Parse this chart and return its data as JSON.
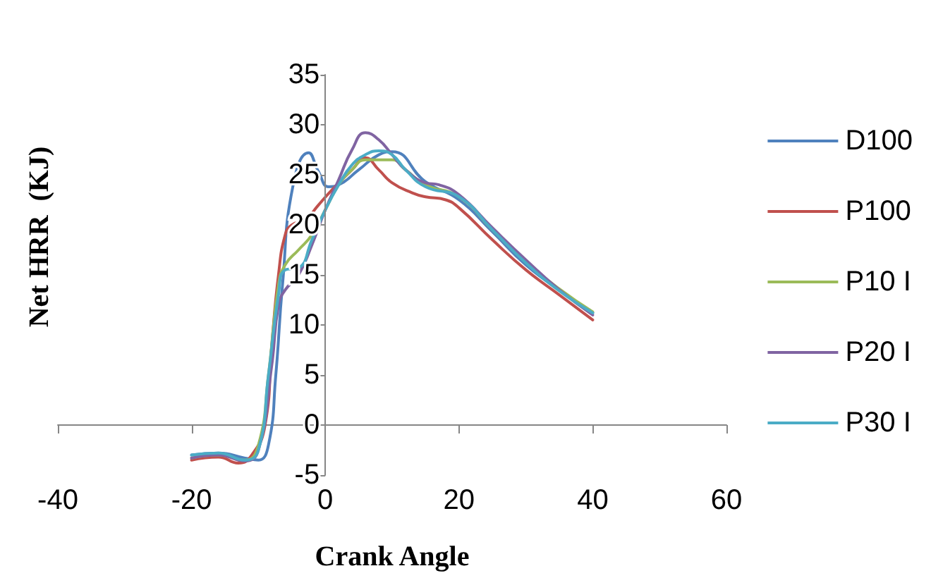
{
  "chart_data": {
    "type": "line",
    "xlabel": "Crank Angle",
    "ylabel": "Net HRR  (KJ)",
    "xlim": [
      -40,
      60
    ],
    "xticks": [
      -40,
      -20,
      0,
      20,
      40,
      60
    ],
    "ylim": [
      -5,
      35
    ],
    "yticks": [
      -5,
      0,
      5,
      10,
      15,
      20,
      25,
      30,
      35
    ],
    "grid": false,
    "legend": "right",
    "marker": "none",
    "line_style": "solid",
    "series": [
      {
        "name": "D100",
        "color": "#4f81bd",
        "x": [
          -20,
          -16,
          -12,
          -10,
          -8.5,
          -7.4,
          -6.4,
          -4.8,
          -2.5,
          -1,
          0.5,
          2,
          5,
          8,
          10,
          15,
          20,
          25,
          30,
          35,
          40
        ],
        "values": [
          -3,
          -2.8,
          -3.3,
          -3.5,
          -2,
          5,
          14,
          24,
          27.2,
          25.3,
          23.8,
          24,
          25.5,
          27,
          27.3,
          24.3,
          22.5,
          19.3,
          16,
          13.5,
          11.2
        ]
      },
      {
        "name": "P100",
        "color": "#c0504d",
        "x": [
          -20,
          -16,
          -13,
          -11,
          -9,
          -8,
          -7,
          -6,
          -5,
          -3,
          -1,
          1,
          4,
          6,
          8,
          10,
          13,
          15,
          18,
          20,
          25,
          30,
          35,
          40
        ],
        "values": [
          -3.5,
          -3.2,
          -3.8,
          -3,
          0,
          8,
          15,
          19,
          20,
          20.5,
          22,
          23.5,
          25.5,
          26.7,
          25.5,
          24.2,
          23.2,
          22.8,
          22.5,
          21.7,
          18.5,
          15.5,
          13,
          10.5
        ]
      },
      {
        "name": "P10 I",
        "color": "#9bbb59",
        "x": [
          -20,
          -16,
          -12,
          -10,
          -8.5,
          -7,
          -6,
          -4,
          -2,
          0,
          2,
          4,
          6,
          8,
          10,
          12,
          15,
          20,
          25,
          30,
          35,
          40
        ],
        "values": [
          -3.3,
          -3,
          -3.5,
          -2,
          5,
          14,
          16,
          17.5,
          19,
          21.5,
          24,
          25.5,
          26.5,
          26.5,
          26.5,
          25.5,
          24,
          22.8,
          19.5,
          16.3,
          13.6,
          11.3
        ]
      },
      {
        "name": "P20 I",
        "color": "#8064a2",
        "x": [
          -20,
          -16,
          -12,
          -10,
          -8,
          -7,
          -6,
          -4,
          -2,
          0,
          2,
          4,
          6,
          8,
          10,
          12,
          15,
          17,
          20,
          25,
          30,
          35,
          40
        ],
        "values": [
          -3.3,
          -3,
          -3.6,
          -2.5,
          6,
          12,
          13.5,
          15,
          18,
          21.5,
          24.5,
          27.5,
          29.2,
          28.5,
          27,
          25.5,
          24.2,
          24,
          23,
          19.7,
          16.5,
          13.5,
          11
        ]
      },
      {
        "name": "P30 I",
        "color": "#4bacc6",
        "x": [
          -20,
          -16,
          -12,
          -10,
          -8.5,
          -7,
          -6,
          -4,
          -2,
          0,
          2,
          4,
          6,
          8,
          10,
          12,
          15,
          20,
          25,
          30,
          35,
          40
        ],
        "values": [
          -3,
          -2.8,
          -3.5,
          -2.5,
          5,
          13,
          15.5,
          15.7,
          18.5,
          21.5,
          24,
          26,
          27,
          27.4,
          27,
          25.5,
          23.8,
          22.8,
          19.5,
          16.2,
          13.4,
          11.2
        ]
      }
    ]
  }
}
